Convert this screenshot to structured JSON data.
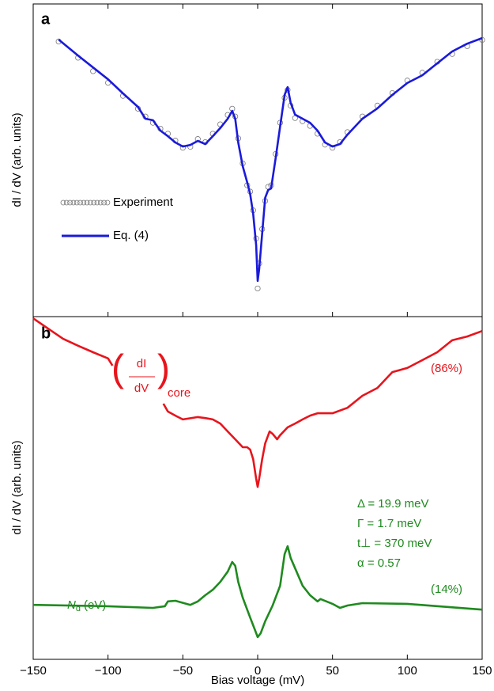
{
  "chart_data": [
    {
      "type": "line",
      "panel_label": "a",
      "ylabel": "dI / dV (arb. units)",
      "xlim": [
        -150,
        150
      ],
      "ylim": [
        0,
        100
      ],
      "legend": "left",
      "series": [
        {
          "name": "Experiment",
          "color": "#777777",
          "marker": "circle",
          "x": [
            -133,
            -120,
            -110,
            -100,
            -90,
            -80,
            -75,
            -70,
            -65,
            -60,
            -55,
            -50,
            -45,
            -40,
            -35,
            -30,
            -25,
            -20,
            -17,
            -15,
            -13,
            -10,
            -7,
            -5,
            -3,
            -1,
            0,
            1,
            3,
            5,
            7,
            9,
            12,
            15,
            18,
            20,
            22,
            25,
            30,
            35,
            40,
            45,
            50,
            55,
            60,
            70,
            80,
            90,
            100,
            110,
            120,
            130,
            140,
            150
          ],
          "values": [
            88.0,
            82.8,
            78.5,
            74.8,
            70.6,
            66.5,
            64.0,
            62.0,
            60.1,
            58.5,
            56.3,
            54.0,
            54.3,
            56.8,
            55.8,
            58.5,
            61.5,
            64.5,
            66.5,
            64.0,
            57.0,
            49.0,
            42.0,
            40.0,
            34.0,
            25.0,
            9.0,
            17.0,
            28.0,
            37.0,
            41.5,
            42.0,
            52.0,
            62.0,
            70.0,
            72.5,
            67.5,
            63.5,
            62.5,
            61.0,
            58.5,
            55.0,
            54.0,
            55.8,
            59.0,
            64.0,
            67.5,
            71.5,
            75.5,
            78.0,
            81.5,
            84.0,
            86.5,
            88.5
          ]
        },
        {
          "name": "Eq. (4)",
          "color": "#1a1adb",
          "marker": "line",
          "x": [
            -133,
            -120,
            -110,
            -100,
            -90,
            -80,
            -75,
            -70,
            -65,
            -60,
            -55,
            -50,
            -45,
            -40,
            -35,
            -30,
            -25,
            -20,
            -17,
            -15,
            -13,
            -10,
            -7,
            -5,
            -3,
            -1,
            0,
            1,
            3,
            5,
            7,
            9,
            12,
            15,
            18,
            20,
            22,
            25,
            30,
            35,
            40,
            45,
            50,
            55,
            60,
            70,
            80,
            90,
            100,
            110,
            120,
            130,
            140,
            150
          ],
          "values": [
            88.6,
            83.5,
            79.7,
            75.9,
            71.4,
            67.1,
            63.3,
            62.8,
            59.5,
            57.7,
            55.7,
            54.4,
            54.9,
            56.2,
            55.2,
            57.7,
            60.3,
            63.3,
            65.8,
            63.3,
            55.7,
            48.1,
            43.0,
            39.2,
            32.9,
            22.8,
            11.4,
            15.2,
            26.6,
            38.0,
            40.5,
            41.0,
            50.6,
            60.8,
            70.9,
            73.4,
            68.4,
            64.6,
            63.3,
            62.0,
            59.5,
            55.7,
            54.4,
            55.2,
            58.2,
            63.3,
            66.6,
            70.9,
            74.7,
            77.2,
            81.0,
            84.8,
            87.3,
            89.1
          ]
        }
      ]
    },
    {
      "type": "line",
      "panel_label": "b",
      "ylabel": "dI / dV (arb. units)",
      "xlabel": "Bias voltage (mV)",
      "xlim": [
        -150,
        150
      ],
      "ylim": [
        0,
        100
      ],
      "xticks": [
        {
          "value": -150,
          "label": "−150"
        },
        {
          "value": -100,
          "label": "−100"
        },
        {
          "value": -50,
          "label": "−50"
        },
        0,
        50,
        100,
        150
      ],
      "series": [
        {
          "color": "#e8141c",
          "x": [
            -150,
            -140,
            -130,
            -120,
            -110,
            -100,
            -97,
            -90,
            -63,
            -60,
            -55,
            -50,
            -40,
            -35,
            -30,
            -25,
            -20,
            -15,
            -10,
            -7,
            -5,
            -3,
            -1,
            0,
            1,
            3,
            5,
            8,
            10,
            13,
            15,
            20,
            25,
            30,
            35,
            40,
            50,
            60,
            70,
            80,
            90,
            100,
            110,
            120,
            130,
            140,
            150
          ],
          "values": [
            99.5,
            96.5,
            93.5,
            91.5,
            89.6,
            87.8,
            85.7,
            null,
            74.6,
            72.3,
            71.1,
            70.0,
            70.7,
            70.4,
            70.0,
            68.8,
            66.5,
            64.2,
            61.9,
            61.9,
            61.2,
            58.4,
            52.7,
            50.3,
            52.7,
            58.4,
            63.0,
            66.5,
            65.8,
            64.2,
            65.4,
            67.7,
            68.8,
            70.0,
            71.1,
            71.8,
            71.8,
            73.4,
            76.9,
            79.2,
            83.8,
            85.0,
            87.3,
            89.6,
            93.1,
            94.2,
            95.8
          ]
        },
        {
          "color": "#1f8a1f",
          "x": [
            -150,
            -100,
            -70,
            -62,
            -60,
            -55,
            -45,
            -40,
            -35,
            -30,
            -25,
            -20,
            -17,
            -15,
            -13,
            -10,
            -5,
            -2,
            0,
            2,
            5,
            10,
            15,
            18,
            20,
            22,
            25,
            30,
            35,
            40,
            42,
            50,
            55,
            60,
            70,
            100,
            150
          ],
          "values": [
            15.9,
            15.5,
            15.0,
            15.5,
            16.9,
            17.1,
            15.9,
            16.9,
            18.7,
            20.3,
            22.6,
            25.6,
            28.4,
            27.3,
            22.6,
            18.0,
            12.2,
            8.8,
            6.5,
            7.6,
            11.1,
            15.7,
            21.5,
            30.7,
            33.0,
            29.6,
            26.6,
            21.5,
            18.7,
            16.9,
            17.6,
            16.2,
            15.0,
            15.7,
            16.4,
            16.2,
            14.5
          ]
        }
      ],
      "core_label": {
        "numerator": "dI",
        "denominator": "dV",
        "subscript": "core"
      },
      "core_share": "(86%)",
      "nd_share": "(14%)",
      "nd_label": {
        "symbol": "N",
        "sub": "d",
        "rest": "(eV)"
      },
      "parameters": [
        "Δ = 19.9 meV",
        "Γ = 1.7 meV",
        "t⊥ = 370 meV",
        "α = 0.57"
      ]
    }
  ]
}
